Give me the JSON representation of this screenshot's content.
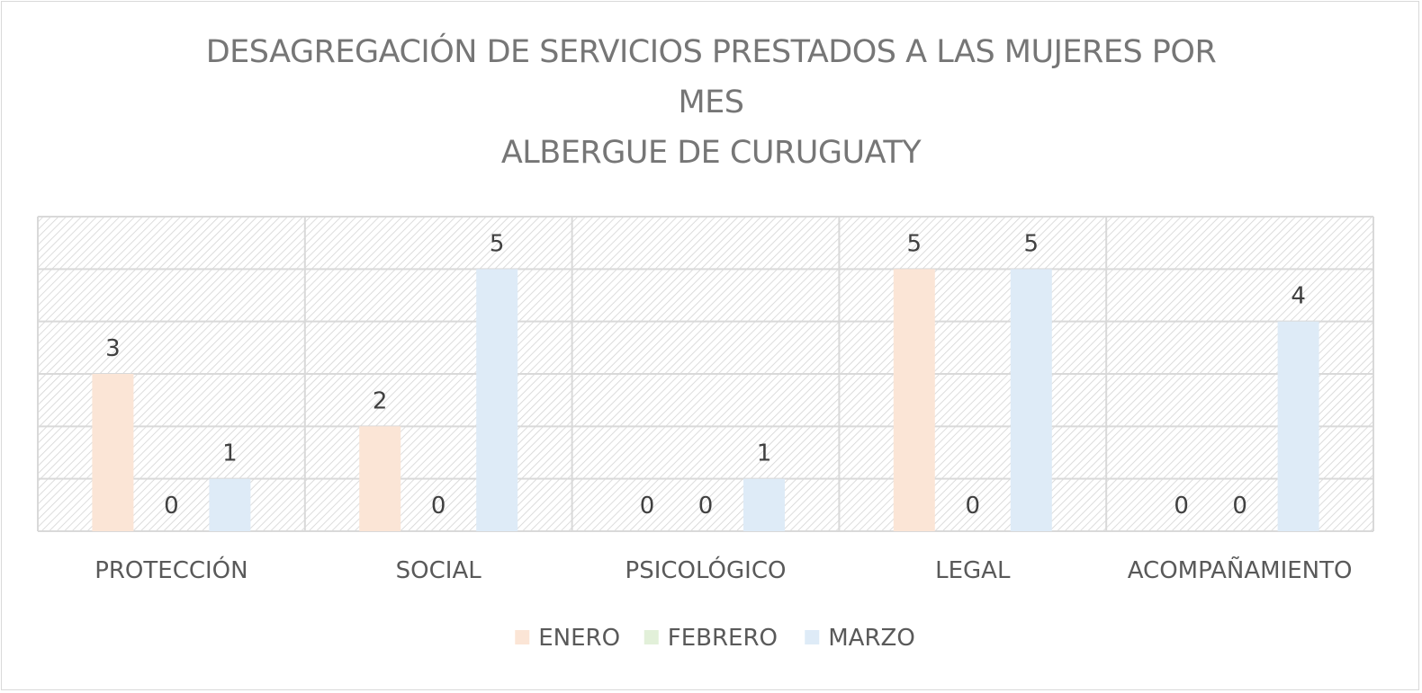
{
  "chart_data": {
    "type": "bar",
    "title_lines": [
      "DESAGREGACIÓN DE SERVICIOS PRESTADOS A LAS MUJERES POR",
      "MES",
      "ALBERGUE DE CURUGUATY"
    ],
    "categories": [
      "PROTECCIÓN",
      "SOCIAL",
      "PSICOLÓGICO",
      "LEGAL",
      "ACOMPAÑAMIENTO"
    ],
    "series": [
      {
        "name": "ENERO",
        "values": [
          3,
          2,
          0,
          5,
          0
        ],
        "color": "#fbe5d6"
      },
      {
        "name": "FEBRERO",
        "values": [
          0,
          0,
          0,
          0,
          0
        ],
        "color": "#e2f0d9"
      },
      {
        "name": "MARZO",
        "values": [
          1,
          5,
          1,
          5,
          4
        ],
        "color": "#deebf7"
      }
    ],
    "ylim": [
      0,
      6
    ],
    "grid": true,
    "pattern_fill": "diagonal hatch",
    "data_labels": true,
    "legend_position": "bottom"
  }
}
